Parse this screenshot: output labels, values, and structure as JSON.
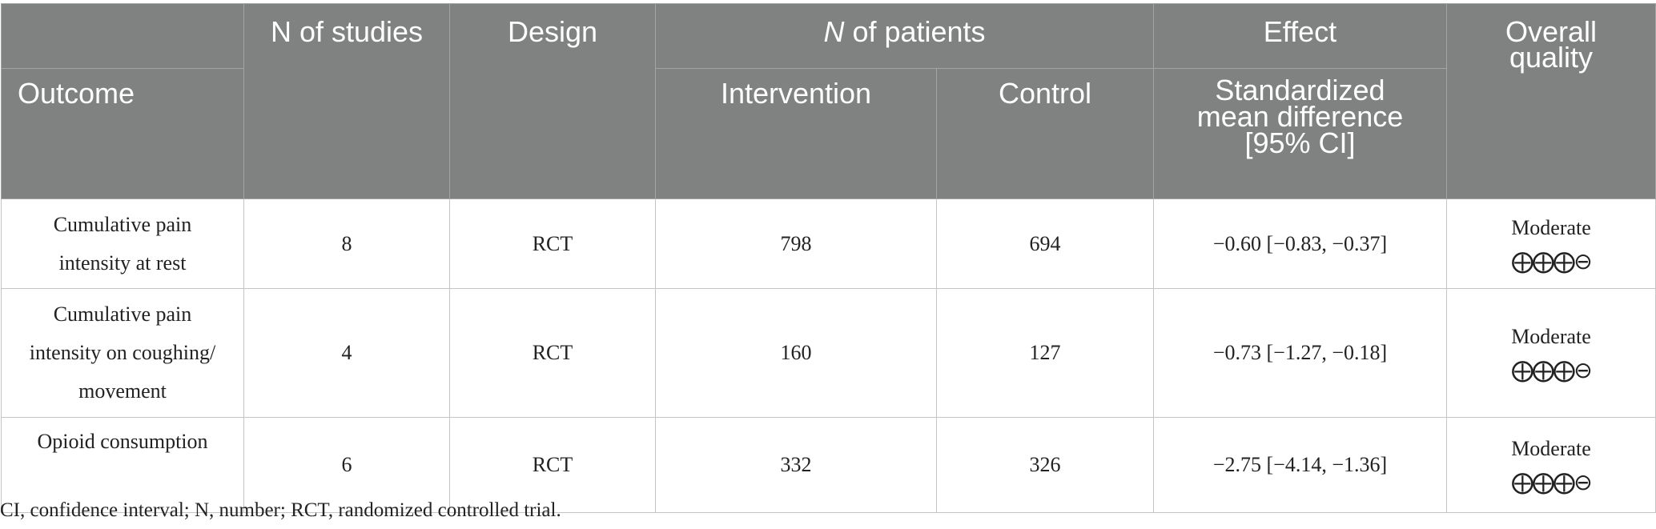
{
  "table": {
    "headers": {
      "outcome": "Outcome",
      "n_studies": "N of studies",
      "design": "Design",
      "n_patients_italic": "N",
      "n_patients_rest": " of patients",
      "intervention": "Intervention",
      "control": "Control",
      "effect": "Effect",
      "smd_line1": "Standardized",
      "smd_line2": "mean difference",
      "smd_line3": "[95% CI]",
      "quality_line1": "Overall",
      "quality_line2": "quality"
    },
    "rows": [
      {
        "outcome": [
          "Cumulative pain",
          "intensity at rest"
        ],
        "n_studies": "8",
        "design": "RCT",
        "intervention": "798",
        "control": "694",
        "effect": "−0.60 [−0.83, −0.37]",
        "quality": "Moderate",
        "quality_symbols": "⨁⨁⨁⊖"
      },
      {
        "outcome": [
          "Cumulative pain",
          "intensity on coughing/",
          "movement"
        ],
        "n_studies": "4",
        "design": "RCT",
        "intervention": "160",
        "control": "127",
        "effect": "−0.73 [−1.27, −0.18]",
        "quality": "Moderate",
        "quality_symbols": "⨁⨁⨁⊖"
      },
      {
        "outcome": [
          "Opioid consumption"
        ],
        "n_studies": "6",
        "design": "RCT",
        "intervention": "332",
        "control": "326",
        "effect": "−2.75 [−4.14, −1.36]",
        "quality": "Moderate",
        "quality_symbols": "⨁⨁⨁⊖"
      }
    ]
  },
  "footnote": "CI, confidence interval; N, number; RCT, randomized controlled trial."
}
